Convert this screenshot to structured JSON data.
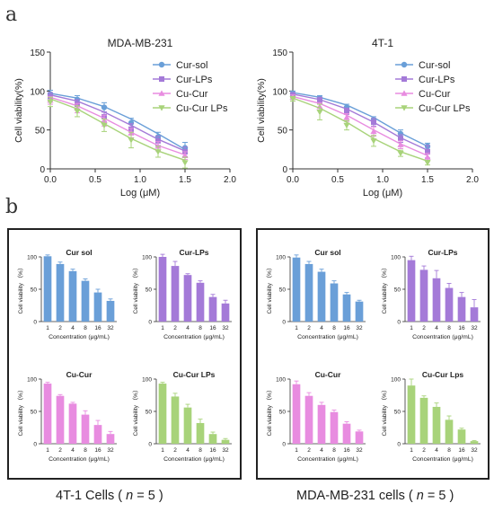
{
  "panel_labels": {
    "a": "a",
    "b": "b"
  },
  "group_labels": {
    "left": {
      "prefix": "4T-1 Cells ( ",
      "n": "n",
      "suffix": " = 5 )"
    },
    "right": {
      "prefix": "MDA-MB-231 cells ( ",
      "n": "n",
      "suffix": " = 5 )"
    }
  },
  "colors": {
    "cur_sol": "#6a9fd8",
    "cur_lps": "#a47ad8",
    "cu_cur": "#e88ce0",
    "cu_cur_lps": "#a8d37a"
  },
  "chart_data": [
    {
      "id": "a-mda",
      "type": "line",
      "title": "MDA-MB-231",
      "xlabel": "Log (μM)",
      "ylabel": "Cell viability(%)",
      "xlim": [
        0.0,
        2.0
      ],
      "ylim": [
        0,
        150
      ],
      "xticks": [
        "0.0",
        "0.5",
        "1.0",
        "1.5",
        "2.0"
      ],
      "yticks": [
        "0",
        "50",
        "100",
        "150"
      ],
      "x": [
        0,
        0.3,
        0.6,
        0.9,
        1.2,
        1.5
      ],
      "legend_position": "top-right",
      "series": [
        {
          "name": "Cur-sol",
          "color": "#6a9fd8",
          "marker": "circle",
          "values": [
            96,
            89,
            79,
            59,
            41,
            27
          ],
          "errors": [
            5,
            5,
            6,
            6,
            6,
            7
          ],
          "curve": [
            97,
            91,
            80,
            64,
            45,
            25
          ]
        },
        {
          "name": "Cur-LPs",
          "color": "#a47ad8",
          "marker": "square",
          "values": [
            93,
            83,
            67,
            51,
            36,
            22
          ],
          "errors": [
            5,
            6,
            6,
            7,
            6,
            6
          ],
          "curve": [
            95,
            87,
            73,
            56,
            38,
            23
          ]
        },
        {
          "name": "Cu-Cur",
          "color": "#e88ce0",
          "marker": "triangle",
          "values": [
            88,
            78,
            62,
            46,
            29,
            17
          ],
          "errors": [
            5,
            6,
            7,
            6,
            6,
            5
          ],
          "curve": [
            92,
            81,
            65,
            47,
            30,
            18
          ]
        },
        {
          "name": "Cu-Cur LPs",
          "color": "#a8d37a",
          "marker": "triangle-down",
          "values": [
            86,
            74,
            56,
            37,
            22,
            8
          ],
          "errors": [
            6,
            7,
            8,
            10,
            7,
            7
          ],
          "curve": [
            90,
            77,
            58,
            39,
            23,
            11
          ]
        }
      ]
    },
    {
      "id": "a-4t1",
      "type": "line",
      "title": "4T-1",
      "xlabel": "Log (μM)",
      "ylabel": "Cell viability(%)",
      "xlim": [
        0.0,
        2.0
      ],
      "ylim": [
        0,
        150
      ],
      "xticks": [
        "0.0",
        "0.5",
        "1.0",
        "1.5",
        "2.0"
      ],
      "yticks": [
        "0",
        "50",
        "100",
        "150"
      ],
      "x": [
        0,
        0.3,
        0.6,
        0.9,
        1.2,
        1.5
      ],
      "legend_position": "top-right",
      "series": [
        {
          "name": "Cur-sol",
          "color": "#6a9fd8",
          "marker": "circle",
          "values": [
            97,
            91,
            79,
            63,
            45,
            29
          ],
          "errors": [
            3,
            3,
            4,
            4,
            5,
            4
          ],
          "curve": [
            98,
            92,
            82,
            66,
            46,
            29
          ]
        },
        {
          "name": "Cur-LPs",
          "color": "#a47ad8",
          "marker": "square",
          "values": [
            95,
            88,
            74,
            60,
            39,
            22
          ],
          "errors": [
            3,
            4,
            4,
            5,
            5,
            8
          ],
          "curve": [
            96,
            89,
            77,
            60,
            40,
            24
          ]
        },
        {
          "name": "Cu-Cur",
          "color": "#e88ce0",
          "marker": "triangle",
          "values": [
            92,
            80,
            66,
            48,
            31,
            15
          ],
          "errors": [
            3,
            5,
            5,
            6,
            5,
            5
          ],
          "curve": [
            93,
            84,
            69,
            50,
            32,
            17
          ]
        },
        {
          "name": "Cu-Cur LPs",
          "color": "#a8d37a",
          "marker": "triangle-down",
          "values": [
            90,
            73,
            56,
            36,
            20,
            8
          ],
          "errors": [
            3,
            10,
            6,
            7,
            4,
            3
          ],
          "curve": [
            91,
            78,
            60,
            39,
            22,
            10
          ]
        }
      ]
    },
    {
      "id": "b-4t1-cursol",
      "type": "bar",
      "title": "Cur sol",
      "color": "#6a9fd8",
      "categories": [
        "1",
        "2",
        "4",
        "8",
        "16",
        "32"
      ],
      "values": [
        101,
        89,
        78,
        63,
        45,
        32
      ],
      "errors": [
        2,
        3,
        3,
        3,
        5,
        3
      ],
      "xlabel": "Concentration (μg/mL)",
      "ylabel": "Cell viability （%）",
      "ylim": [
        0,
        100
      ],
      "yticks": [
        "0",
        "50",
        "100"
      ]
    },
    {
      "id": "b-4t1-curlps",
      "type": "bar",
      "title": "Cur-LPs",
      "color": "#a47ad8",
      "categories": [
        "1",
        "2",
        "4",
        "8",
        "16",
        "32"
      ],
      "values": [
        100,
        86,
        72,
        60,
        38,
        28
      ],
      "errors": [
        4,
        7,
        2,
        3,
        4,
        5
      ],
      "xlabel": "Concentration (μg/mL)",
      "ylabel": "Cell viability （%）",
      "ylim": [
        0,
        100
      ],
      "yticks": [
        "0",
        "50",
        "100"
      ]
    },
    {
      "id": "b-4t1-cucur",
      "type": "bar",
      "title": "Cu-Cur",
      "color": "#e88ce0",
      "categories": [
        "1",
        "2",
        "4",
        "8",
        "16",
        "32"
      ],
      "values": [
        93,
        74,
        62,
        45,
        29,
        15
      ],
      "errors": [
        2,
        2,
        2,
        6,
        7,
        4
      ],
      "xlabel": "Concentration (μg/mL)",
      "ylabel": "Cell viability （%）",
      "ylim": [
        0,
        100
      ],
      "yticks": [
        "0",
        "50",
        "100"
      ]
    },
    {
      "id": "b-4t1-cucurlps",
      "type": "bar",
      "title": "Cu-Cur LPs",
      "color": "#a8d37a",
      "categories": [
        "1",
        "2",
        "4",
        "8",
        "16",
        "32"
      ],
      "values": [
        93,
        73,
        56,
        32,
        15,
        6
      ],
      "errors": [
        2,
        5,
        5,
        6,
        3,
        2
      ],
      "xlabel": "Concentration (μg/mL)",
      "ylabel": "Cell viability （%）",
      "ylim": [
        0,
        100
      ],
      "yticks": [
        "0",
        "50",
        "100"
      ]
    },
    {
      "id": "b-mda-cursol",
      "type": "bar",
      "title": "Cur sol",
      "color": "#6a9fd8",
      "categories": [
        "1",
        "2",
        "4",
        "8",
        "16",
        "32"
      ],
      "values": [
        99,
        89,
        77,
        59,
        42,
        31
      ],
      "errors": [
        4,
        4,
        4,
        4,
        3,
        2
      ],
      "xlabel": "Concentration (μg/mL)",
      "ylabel": "Cell viability （%）",
      "ylim": [
        0,
        100
      ],
      "yticks": [
        "0",
        "50",
        "100"
      ]
    },
    {
      "id": "b-mda-curlps",
      "type": "bar",
      "title": "Cur-LPs",
      "color": "#a47ad8",
      "categories": [
        "1",
        "2",
        "4",
        "8",
        "16",
        "32"
      ],
      "values": [
        95,
        80,
        67,
        52,
        38,
        22
      ],
      "errors": [
        6,
        6,
        12,
        7,
        7,
        12
      ],
      "xlabel": "Concentration (μg/mL)",
      "ylabel": "Cell viability （%）",
      "ylim": [
        0,
        100
      ],
      "yticks": [
        "0",
        "50",
        "100"
      ]
    },
    {
      "id": "b-mda-cucur",
      "type": "bar",
      "title": "Cu-Cur",
      "color": "#e88ce0",
      "categories": [
        "1",
        "2",
        "4",
        "8",
        "16",
        "32"
      ],
      "values": [
        92,
        74,
        60,
        49,
        31,
        19
      ],
      "errors": [
        5,
        5,
        4,
        3,
        3,
        2
      ],
      "xlabel": "Concentration (μg/mL)",
      "ylabel": "Cell viability （%）",
      "ylim": [
        0,
        100
      ],
      "yticks": [
        "0",
        "50",
        "100"
      ]
    },
    {
      "id": "b-mda-cucurlps",
      "type": "bar",
      "title": "Cu-Cur Lps",
      "color": "#a8d37a",
      "categories": [
        "1",
        "2",
        "4",
        "8",
        "16",
        "32"
      ],
      "values": [
        90,
        71,
        57,
        37,
        22,
        4
      ],
      "errors": [
        10,
        3,
        6,
        6,
        2,
        1
      ],
      "xlabel": "Concentration (μg/mL)",
      "ylabel": "Cell viability （%）",
      "ylim": [
        0,
        100
      ],
      "yticks": [
        "0",
        "50",
        "100"
      ]
    }
  ]
}
